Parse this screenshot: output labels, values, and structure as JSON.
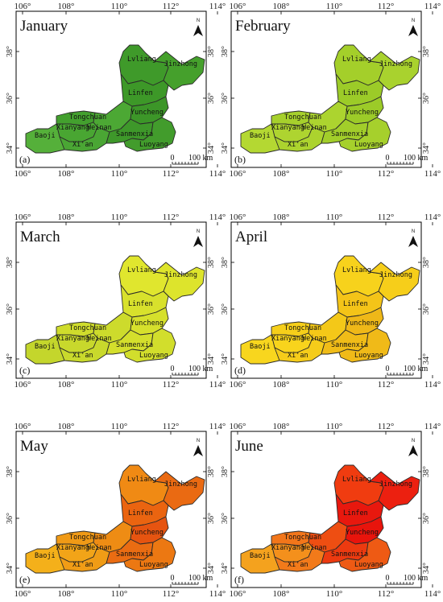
{
  "lon_labels": [
    "106°",
    "108°",
    "110°",
    "112°",
    "114°"
  ],
  "lat_labels": [
    "38°",
    "36°",
    "34°"
  ],
  "north_label": "N",
  "scale_labels": {
    "zero": "0",
    "dist": "100 km"
  },
  "cities": {
    "lvliang": "Lvliang",
    "jinzhong": "Jinzhong",
    "linfen": "Linfen",
    "tongchuan": "Tongchuan",
    "xianyang": "Xianyang",
    "weinan": "Weinan",
    "yuncheng": "Yuncheng",
    "baoji": "Baoji",
    "xian": "Xi'an",
    "sanmenxia": "Sanmenxia",
    "luoyang": "Luoyang"
  },
  "panels": [
    {
      "month": "January",
      "label": "(a)",
      "colors": {
        "lvliang": "#3f9a2a",
        "jinzhong": "#45a02c",
        "linfen": "#3d9828",
        "tongchuan": "#43a02e",
        "xianyang": "#49a632",
        "weinan": "#4ca834",
        "yuncheng": "#3c9628",
        "baoji": "#55b03a",
        "xian": "#4aa634",
        "sanmenxia": "#3e982a",
        "luoyang": "#429c2c"
      }
    },
    {
      "month": "February",
      "label": "(b)",
      "colors": {
        "lvliang": "#a4cf2a",
        "jinzhong": "#a9d22e",
        "linfen": "#9ccb28",
        "tongchuan": "#a6d02c",
        "xianyang": "#aed430",
        "weinan": "#acd42f",
        "yuncheng": "#9ccb28",
        "baoji": "#b4d832",
        "xian": "#acd32e",
        "sanmenxia": "#a2ce2a",
        "luoyang": "#a6d02c"
      }
    },
    {
      "month": "March",
      "label": "(c)",
      "colors": {
        "lvliang": "#e0e62e",
        "jinzhong": "#dde42c",
        "linfen": "#d8e12c",
        "tongchuan": "#cfdc2c",
        "xianyang": "#c8d82c",
        "weinan": "#cddb2c",
        "yuncheng": "#d6e02c",
        "baoji": "#c4d62c",
        "xian": "#c9d92c",
        "sanmenxia": "#d4df2c",
        "luoyang": "#d2de2c"
      }
    },
    {
      "month": "April",
      "label": "(d)",
      "colors": {
        "lvliang": "#f7d21c",
        "jinzhong": "#f6ce1a",
        "linfen": "#f4c418",
        "tongchuan": "#f6cf1a",
        "xianyang": "#f8d41c",
        "weinan": "#f4c818",
        "yuncheng": "#efb818",
        "baoji": "#f8d61e",
        "xian": "#f5cc1a",
        "sanmenxia": "#f0bc18",
        "luoyang": "#f0ba18"
      }
    },
    {
      "month": "May",
      "label": "(e)",
      "colors": {
        "lvliang": "#f08a14",
        "jinzhong": "#ea6a12",
        "linfen": "#ea6410",
        "tongchuan": "#f09a16",
        "xianyang": "#f2a418",
        "weinan": "#ee8c14",
        "yuncheng": "#e65410",
        "baoji": "#f4b01a",
        "xian": "#f09c16",
        "sanmenxia": "#ea6c12",
        "luoyang": "#ec7812"
      }
    },
    {
      "month": "June",
      "label": "(f)",
      "colors": {
        "lvliang": "#f03c10",
        "jinzhong": "#ec2010",
        "linfen": "#e8180e",
        "tongchuan": "#f2761a",
        "xianyang": "#f4901c",
        "weinan": "#ee4e12",
        "yuncheng": "#e8140c",
        "baoji": "#f4a21e",
        "xian": "#f27a1a",
        "sanmenxia": "#ec3a10",
        "luoyang": "#ee5a14"
      }
    }
  ]
}
